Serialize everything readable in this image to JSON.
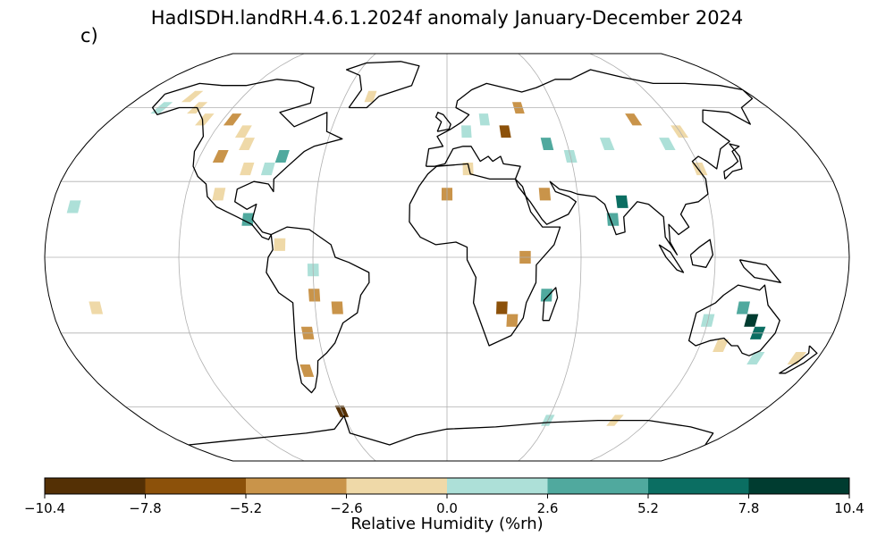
{
  "title": "HadISDH.landRH.4.6.1.2024f anomaly January-December 2024",
  "panel_label": "c)",
  "colorbar": {
    "label": "Relative Humidity (%rh)",
    "ticks": [
      "−10.4",
      "−7.8",
      "−5.2",
      "−2.6",
      "0.0",
      "2.6",
      "5.2",
      "7.8",
      "10.4"
    ],
    "range": [
      -10.4,
      10.4
    ],
    "colors": [
      "#543005",
      "#8c510a",
      "#c9944a",
      "#efd9a8",
      "#ade0d8",
      "#50a99e",
      "#0b6e62",
      "#003c30"
    ]
  },
  "map": {
    "projection": "Robinson",
    "gridlines": true,
    "land_color": "#ffffff",
    "coast_color": "#000000"
  },
  "chart_data": {
    "type": "heatmap",
    "variable": "Relative Humidity (%rh)",
    "cells": [
      {
        "lon": -160,
        "lat": 60,
        "v": 1.5
      },
      {
        "lon": -150,
        "lat": 65,
        "v": -1.0
      },
      {
        "lon": -140,
        "lat": 60,
        "v": -2.0
      },
      {
        "lon": -130,
        "lat": 55,
        "v": -1.5
      },
      {
        "lon": -115,
        "lat": 55,
        "v": -3.0
      },
      {
        "lon": -105,
        "lat": 50,
        "v": -2.0
      },
      {
        "lon": -100,
        "lat": 45,
        "v": -1.5
      },
      {
        "lon": -110,
        "lat": 40,
        "v": -3.5
      },
      {
        "lon": -95,
        "lat": 35,
        "v": -1.0
      },
      {
        "lon": -85,
        "lat": 35,
        "v": 1.5
      },
      {
        "lon": -80,
        "lat": 40,
        "v": 3.0
      },
      {
        "lon": -105,
        "lat": 25,
        "v": -2.5
      },
      {
        "lon": -90,
        "lat": 15,
        "v": 3.5
      },
      {
        "lon": -75,
        "lat": 5,
        "v": -2.0
      },
      {
        "lon": -60,
        "lat": -5,
        "v": 1.5
      },
      {
        "lon": -60,
        "lat": -15,
        "v": -3.5
      },
      {
        "lon": -50,
        "lat": -20,
        "v": -4.0
      },
      {
        "lon": -65,
        "lat": -30,
        "v": -3.5
      },
      {
        "lon": -70,
        "lat": -45,
        "v": -3.0
      },
      {
        "lon": -45,
        "lat": 65,
        "v": -2.0
      },
      {
        "lon": 10,
        "lat": 50,
        "v": 2.5
      },
      {
        "lon": 20,
        "lat": 55,
        "v": 1.5
      },
      {
        "lon": 30,
        "lat": 50,
        "v": -5.5
      },
      {
        "lon": 40,
        "lat": 60,
        "v": -3.0
      },
      {
        "lon": 50,
        "lat": 45,
        "v": 3.5
      },
      {
        "lon": 60,
        "lat": 40,
        "v": 2.0
      },
      {
        "lon": 80,
        "lat": 45,
        "v": 1.5
      },
      {
        "lon": 100,
        "lat": 55,
        "v": -3.5
      },
      {
        "lon": 110,
        "lat": 45,
        "v": 2.0
      },
      {
        "lon": 120,
        "lat": 50,
        "v": -1.5
      },
      {
        "lon": 120,
        "lat": 35,
        "v": -2.5
      },
      {
        "lon": 80,
        "lat": 22,
        "v": 7.0
      },
      {
        "lon": 75,
        "lat": 15,
        "v": 4.0
      },
      {
        "lon": 45,
        "lat": 25,
        "v": -3.0
      },
      {
        "lon": 10,
        "lat": 35,
        "v": -2.5
      },
      {
        "lon": 0,
        "lat": 25,
        "v": -3.0
      },
      {
        "lon": 25,
        "lat": -20,
        "v": -6.5
      },
      {
        "lon": 30,
        "lat": -25,
        "v": -4.5
      },
      {
        "lon": 35,
        "lat": 0,
        "v": -3.0
      },
      {
        "lon": 45,
        "lat": -15,
        "v": 3.0
      },
      {
        "lon": 135,
        "lat": -20,
        "v": 5.0
      },
      {
        "lon": 140,
        "lat": -25,
        "v": 8.0
      },
      {
        "lon": 145,
        "lat": -30,
        "v": 6.0
      },
      {
        "lon": 120,
        "lat": -25,
        "v": 2.0
      },
      {
        "lon": 130,
        "lat": -35,
        "v": -1.5
      },
      {
        "lon": 150,
        "lat": -40,
        "v": 1.0
      },
      {
        "lon": 170,
        "lat": -40,
        "v": -2.0
      },
      {
        "lon": -170,
        "lat": 20,
        "v": 1.5
      },
      {
        "lon": -160,
        "lat": -20,
        "v": -1.5
      },
      {
        "lon": -60,
        "lat": -62,
        "v": -9.0
      },
      {
        "lon": 60,
        "lat": -66,
        "v": 2.5
      },
      {
        "lon": 100,
        "lat": -66,
        "v": -2.0
      }
    ]
  }
}
